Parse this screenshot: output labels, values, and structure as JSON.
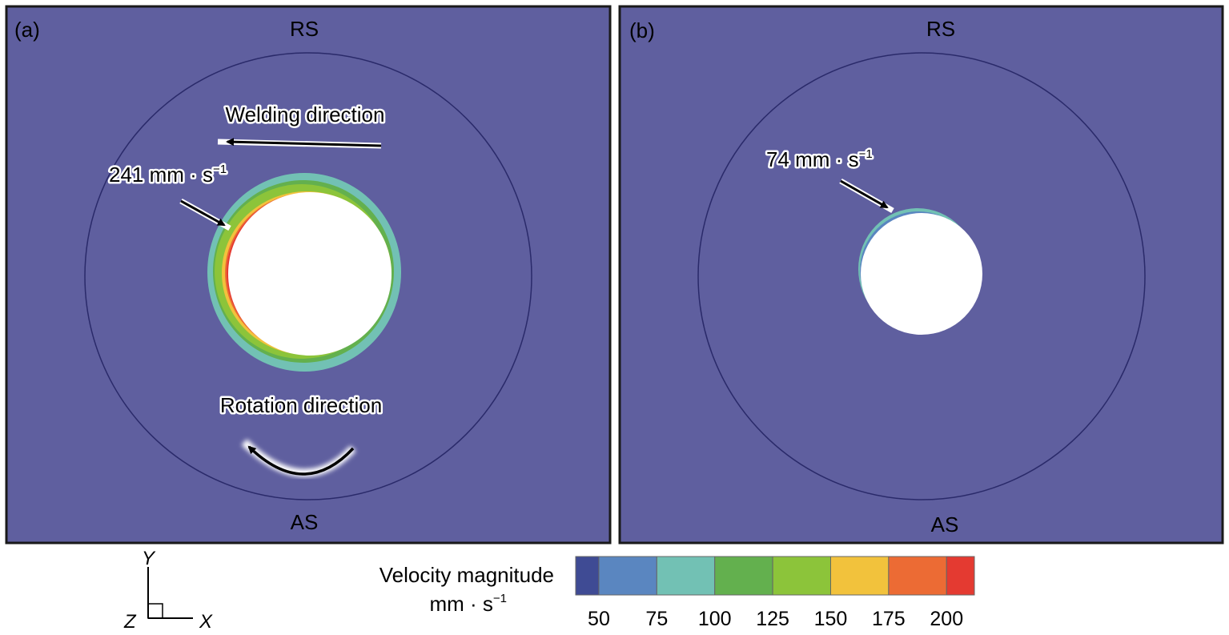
{
  "colors": {
    "field": "#5f5f9f",
    "panel_border": "#1a1a1a",
    "ring": "#2a2a6a"
  },
  "panel_a": {
    "tag": "(a)",
    "top_label": "RS",
    "bottom_label": "AS",
    "welding_direction": "Welding direction",
    "rotation_direction": "Rotation direction",
    "max_velocity": "241 mm · s",
    "max_velocity_exp": "−1"
  },
  "panel_b": {
    "tag": "(b)",
    "top_label": "RS",
    "bottom_label": "AS",
    "max_velocity": "74 mm · s",
    "max_velocity_exp": "−1"
  },
  "axes": {
    "y": "Y",
    "z": "Z",
    "x": "X"
  },
  "legend": {
    "title": "Velocity magnitude",
    "unit": "mm · s",
    "unit_exp": "−1",
    "ticks": [
      "50",
      "75",
      "100",
      "125",
      "150",
      "175",
      "200"
    ],
    "bins": [
      {
        "from": 40,
        "to": 50,
        "color": "#3f4b94"
      },
      {
        "from": 50,
        "to": 75,
        "color": "#5a86c0"
      },
      {
        "from": 75,
        "to": 100,
        "color": "#72c1b4"
      },
      {
        "from": 100,
        "to": 125,
        "color": "#63b04e"
      },
      {
        "from": 125,
        "to": 150,
        "color": "#8cc43a"
      },
      {
        "from": 150,
        "to": 175,
        "color": "#f2c23c"
      },
      {
        "from": 175,
        "to": 200,
        "color": "#ec6b34"
      },
      {
        "from": 200,
        "to": 212,
        "color": "#e43a31"
      }
    ]
  }
}
